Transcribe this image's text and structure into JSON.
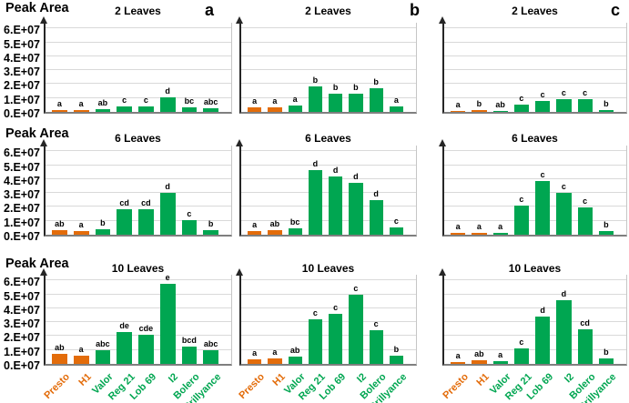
{
  "colors": {
    "orange": "#e36c0a",
    "green": "#00a651",
    "grid": "#d9d9d9",
    "axis": "#262626",
    "baseline": "#7f7f7f",
    "text": "#000000"
  },
  "chart_data": {
    "type": "bar",
    "ylabel": "Peak Area",
    "yticks": [
      "6.E+07",
      "5.E+07",
      "4.E+07",
      "3.E+07",
      "2.E+07",
      "1.E+07",
      "0.E+07"
    ],
    "ylim": [
      0,
      60000000
    ],
    "grid": true,
    "legend_position": "none",
    "panel_letters": [
      "a",
      "b",
      "c"
    ],
    "categories": [
      "Presto",
      "H1",
      "Valor",
      "Reg 21",
      "Lob 69",
      "I2",
      "Bolero",
      "Brillyance"
    ],
    "category_colors": [
      "orange",
      "orange",
      "green",
      "green",
      "green",
      "green",
      "green",
      "green"
    ],
    "rows": [
      {
        "title": "2 Leaves",
        "panels": [
          {
            "letter": "a",
            "values": [
              1500000,
              1500000,
              1800000,
              4000000,
              3800000,
              10500000,
              3500000,
              2500000
            ],
            "sig_letters": [
              "a",
              "a",
              "ab",
              "c",
              "c",
              "d",
              "bc",
              "abc"
            ]
          },
          {
            "letter": "b",
            "values": [
              3000000,
              3500000,
              4500000,
              18000000,
              13000000,
              13000000,
              17000000,
              4000000
            ],
            "sig_letters": [
              "a",
              "a",
              "a",
              "b",
              "b",
              "b",
              "b",
              "a"
            ]
          },
          {
            "letter": "c",
            "values": [
              700000,
              1200000,
              600000,
              5500000,
              8000000,
              9200000,
              9000000,
              1000000
            ],
            "sig_letters": [
              "a",
              "b",
              "ab",
              "c",
              "c",
              "c",
              "c",
              "b"
            ]
          }
        ]
      },
      {
        "title": "6 Leaves",
        "panels": [
          {
            "letter": "a",
            "values": [
              3200000,
              2800000,
              4000000,
              18000000,
              18500000,
              30000000,
              10500000,
              3500000
            ],
            "sig_letters": [
              "ab",
              "a",
              "b",
              "cd",
              "cd",
              "d",
              "c",
              "b"
            ]
          },
          {
            "letter": "b",
            "values": [
              2500000,
              3500000,
              4500000,
              46500000,
              42000000,
              37000000,
              25000000,
              5500000
            ],
            "sig_letters": [
              "a",
              "ab",
              "bc",
              "d",
              "d",
              "d",
              "d",
              "c"
            ]
          },
          {
            "letter": "c",
            "values": [
              1200000,
              1200000,
              1500000,
              21000000,
              38500000,
              30000000,
              19500000,
              2500000
            ],
            "sig_letters": [
              "a",
              "a",
              "a",
              "c",
              "c",
              "c",
              "c",
              "b"
            ]
          }
        ]
      },
      {
        "title": "10 Leaves",
        "panels": [
          {
            "letter": "a",
            "values": [
              7000000,
              6000000,
              9500000,
              23000000,
              21000000,
              57500000,
              12500000,
              9500000
            ],
            "sig_letters": [
              "ab",
              "a",
              "abc",
              "de",
              "cde",
              "e",
              "bcd",
              "abc"
            ]
          },
          {
            "letter": "b",
            "values": [
              3500000,
              3800000,
              5000000,
              32000000,
              36000000,
              50000000,
              24000000,
              6000000
            ],
            "sig_letters": [
              "a",
              "a",
              "ab",
              "c",
              "c",
              "c",
              "c",
              "b"
            ]
          },
          {
            "letter": "c",
            "values": [
              1500000,
              2500000,
              2000000,
              11000000,
              34000000,
              46000000,
              25000000,
              4000000
            ],
            "sig_letters": [
              "a",
              "ab",
              "a",
              "c",
              "d",
              "d",
              "cd",
              "b"
            ]
          }
        ]
      }
    ]
  }
}
